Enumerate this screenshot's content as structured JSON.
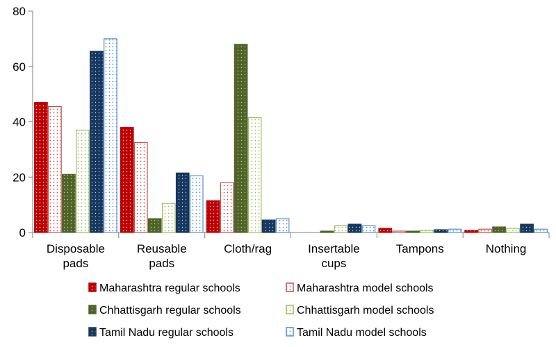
{
  "chart_data": {
    "type": "bar",
    "title": "",
    "xlabel": "",
    "ylabel": "",
    "ylim": [
      0,
      80
    ],
    "yticks": [
      0,
      20,
      40,
      60,
      80
    ],
    "grid": false,
    "legend_position": "bottom",
    "categories": [
      [
        "Disposable",
        "pads"
      ],
      [
        "Reusable",
        "pads"
      ],
      [
        "Cloth/rag"
      ],
      [
        "Insertable",
        "cups"
      ],
      [
        "Tampons"
      ],
      [
        "Nothing"
      ]
    ],
    "series": [
      {
        "name": "Maharashtra regular schools",
        "color": "#c00000",
        "style": "dotted-fill",
        "values": [
          47,
          38,
          11.5,
          0,
          1.5,
          0.8
        ]
      },
      {
        "name": "Maharashtra model schools",
        "color": "#c0504d",
        "style": "dotted-light",
        "values": [
          45.5,
          32.5,
          18,
          0,
          0.5,
          1.2
        ]
      },
      {
        "name": "Chhattisgarh regular schools",
        "color": "#4f6228",
        "style": "dotted-fill",
        "values": [
          21,
          5,
          68,
          0.5,
          0.5,
          2
        ]
      },
      {
        "name": "Chhattisgarh model schools",
        "color": "#9bbb59",
        "style": "dotted-light",
        "values": [
          37,
          10.5,
          41.5,
          2.5,
          0.8,
          1.5
        ]
      },
      {
        "name": "Tamil Nadu regular schools",
        "color": "#17375e",
        "style": "dotted-fill",
        "values": [
          65.5,
          21.5,
          4.5,
          3,
          1,
          3
        ]
      },
      {
        "name": "Tamil Nadu  model schools",
        "color": "#558ed5",
        "style": "dotted-light",
        "values": [
          70,
          20.5,
          5,
          2.5,
          1.2,
          1.2
        ]
      }
    ]
  }
}
